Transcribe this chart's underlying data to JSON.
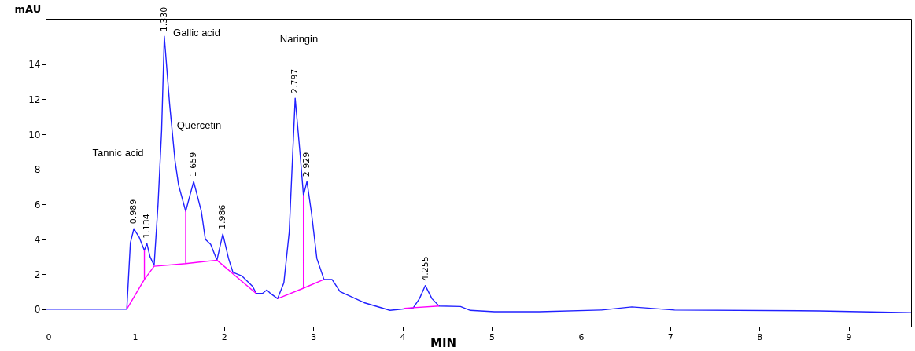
{
  "chart_data": {
    "type": "line",
    "xlabel": "MIN",
    "ylabel": "mAU",
    "xlim": [
      0,
      9.7
    ],
    "xticks": [
      0,
      1,
      2,
      3,
      4,
      5,
      6,
      7,
      8,
      9
    ],
    "ylim": [
      -1,
      16.6
    ],
    "yticks": [
      0,
      2,
      4,
      6,
      8,
      10,
      12,
      14
    ],
    "marker": "none",
    "line_style": "solid",
    "series": [
      {
        "color": "#2020ff",
        "x": [
          0,
          0.91,
          0.95,
          0.989,
          1.05,
          1.107,
          1.134,
          1.17,
          1.216,
          1.26,
          1.3,
          1.33,
          1.39,
          1.45,
          1.49,
          1.57,
          1.659,
          1.745,
          1.79,
          1.85,
          1.92,
          1.986,
          2.05,
          2.1,
          2.2,
          2.32,
          2.36,
          2.43,
          2.48,
          2.52,
          2.6,
          2.67,
          2.73,
          2.797,
          2.85,
          2.89,
          2.929,
          2.98,
          3.04,
          3.12,
          3.21,
          3.3,
          3.57,
          3.86,
          4.12,
          4.19,
          4.255,
          4.33,
          4.41,
          4.65,
          4.76,
          5.03,
          5.53,
          6.23,
          6.57,
          7.05,
          8.67,
          9.7
        ],
        "values": [
          0,
          0,
          3.8,
          4.6,
          4.1,
          3.36,
          3.77,
          3.0,
          2.5,
          6.0,
          10.2,
          15.6,
          11.7,
          8.5,
          7.1,
          5.6,
          7.3,
          5.6,
          4.0,
          3.7,
          2.8,
          4.3,
          2.9,
          2.1,
          1.9,
          1.3,
          0.9,
          0.9,
          1.1,
          0.9,
          0.6,
          1.5,
          4.4,
          12.06,
          9.0,
          6.5,
          7.3,
          5.5,
          2.9,
          1.7,
          1.7,
          1.0,
          0.37,
          -0.07,
          0.07,
          0.6,
          1.35,
          0.6,
          0.18,
          0.15,
          -0.07,
          -0.15,
          -0.15,
          -0.05,
          0.13,
          -0.05,
          -0.1,
          -0.2
        ]
      },
      {
        "color": "#ff00ff",
        "x": [
          0.91,
          1.107,
          1.107,
          1.107,
          1.216,
          1.57,
          1.57,
          1.57,
          1.92,
          2.36,
          2.5,
          2.6,
          2.89,
          2.89,
          2.89,
          3.12,
          3.6,
          4.02,
          4.41
        ],
        "values": [
          0,
          1.7,
          3.36,
          1.7,
          2.45,
          2.6,
          5.6,
          2.6,
          2.8,
          0.9,
          null,
          0.6,
          1.2,
          6.5,
          1.2,
          1.7,
          null,
          0.05,
          0.18
        ]
      }
    ],
    "annotations": [
      {
        "text": "0.989",
        "x": 0.989,
        "y": 4.6
      },
      {
        "text": "1.134",
        "x": 1.134,
        "y": 3.77
      },
      {
        "text": "1.330",
        "x": 1.33,
        "y": 15.6
      },
      {
        "text": "1.659",
        "x": 1.659,
        "y": 7.3
      },
      {
        "text": "1.986",
        "x": 1.986,
        "y": 4.3
      },
      {
        "text": "2.797",
        "x": 2.797,
        "y": 12.06
      },
      {
        "text": "2.929",
        "x": 2.929,
        "y": 7.3
      },
      {
        "text": "4.255",
        "x": 4.255,
        "y": 1.35
      },
      "Tannic acid",
      "Gallic acid",
      "Quercetin",
      "Naringin"
    ]
  }
}
